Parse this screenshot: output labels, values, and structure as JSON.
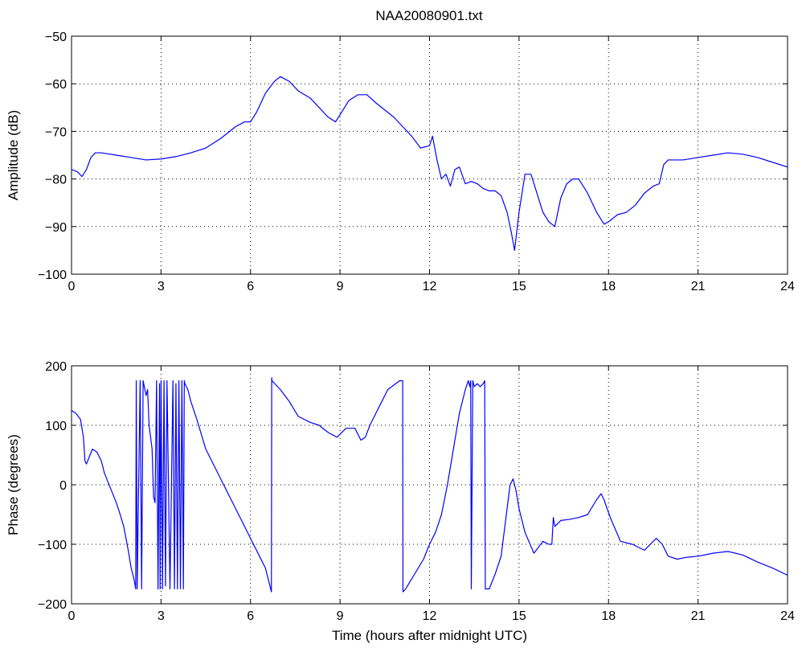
{
  "figure": {
    "title": "NAA20080901.txt"
  },
  "colors": {
    "line": "#0000ff",
    "background": "#ffffff",
    "axes": "#000000",
    "grid": "#000000"
  },
  "chart_data": [
    {
      "type": "line",
      "title": "NAA20080901.txt",
      "xlabel": "",
      "ylabel": "Amplitude (dB)",
      "xlim": [
        0,
        24
      ],
      "ylim": [
        -100,
        -50
      ],
      "xticks": [
        0,
        3,
        6,
        9,
        12,
        15,
        18,
        21,
        24
      ],
      "yticks": [
        -100,
        -90,
        -80,
        -70,
        -60,
        -50
      ],
      "xtick_labels": [
        "0",
        "3",
        "6",
        "9",
        "12",
        "15",
        "18",
        "21",
        "24"
      ],
      "ytick_labels": [
        "−100",
        "−90",
        "−80",
        "−70",
        "−60",
        "−50"
      ],
      "grid": true,
      "series": [
        {
          "x": [
            0.0,
            0.2,
            0.35,
            0.5,
            0.65,
            0.8,
            1.0,
            1.5,
            2.0,
            2.5,
            3.0,
            3.5,
            4.0,
            4.5,
            5.0,
            5.5,
            5.8,
            6.0,
            6.2,
            6.5,
            6.8,
            7.0,
            7.3,
            7.6,
            8.0,
            8.3,
            8.6,
            8.85,
            9.0,
            9.3,
            9.6,
            9.9,
            10.2,
            10.5,
            10.8,
            11.1,
            11.4,
            11.7,
            12.0,
            12.1,
            12.25,
            12.4,
            12.55,
            12.7,
            12.85,
            13.0,
            13.2,
            13.4,
            13.6,
            13.8,
            14.0,
            14.2,
            14.4,
            14.6,
            14.75,
            14.85,
            15.0,
            15.2,
            15.4,
            15.6,
            15.8,
            16.0,
            16.2,
            16.4,
            16.6,
            16.8,
            17.0,
            17.3,
            17.6,
            17.85,
            18.0,
            18.3,
            18.6,
            18.9,
            19.2,
            19.5,
            19.7,
            19.85,
            20.0,
            20.5,
            21.0,
            21.5,
            22.0,
            22.5,
            23.0,
            23.5,
            24.0
          ],
          "y": [
            -78,
            -78.5,
            -79.5,
            -78,
            -75.5,
            -74.5,
            -74.5,
            -75,
            -75.5,
            -76,
            -75.8,
            -75.3,
            -74.5,
            -73.5,
            -71.5,
            -69,
            -68,
            -68,
            -66,
            -62,
            -59.5,
            -58.5,
            -59.5,
            -61.5,
            -63,
            -65,
            -67,
            -68,
            -66.5,
            -63.5,
            -62.3,
            -62.3,
            -64,
            -65.5,
            -67,
            -69,
            -71,
            -73.5,
            -73,
            -71,
            -76,
            -80,
            -79,
            -81.5,
            -78,
            -77.5,
            -81,
            -80.5,
            -81,
            -82,
            -82.5,
            -82.5,
            -83.5,
            -87,
            -91.5,
            -95,
            -87,
            -79,
            -79,
            -83,
            -87,
            -89,
            -90,
            -84,
            -81,
            -80,
            -80,
            -83,
            -87,
            -89.5,
            -89,
            -87.5,
            -87,
            -85.5,
            -83,
            -81.5,
            -81,
            -77,
            -76,
            -76,
            -75.5,
            -75,
            -74.5,
            -74.8,
            -75.5,
            -76.5,
            -77.5
          ]
        }
      ]
    },
    {
      "type": "line",
      "title": "",
      "xlabel": "Time (hours after midnight UTC)",
      "ylabel": "Phase (degrees)",
      "xlim": [
        0,
        24
      ],
      "ylim": [
        -200,
        200
      ],
      "xticks": [
        0,
        3,
        6,
        9,
        12,
        15,
        18,
        21,
        24
      ],
      "yticks": [
        -200,
        -100,
        0,
        100,
        200
      ],
      "xtick_labels": [
        "0",
        "3",
        "6",
        "9",
        "12",
        "15",
        "18",
        "21",
        "24"
      ],
      "ytick_labels": [
        "−200",
        "−100",
        "0",
        "100",
        "200"
      ],
      "grid": true,
      "series": [
        {
          "x": [
            0.0,
            0.15,
            0.3,
            0.4,
            0.45,
            0.5,
            0.7,
            0.85,
            1.0,
            1.1,
            1.3,
            1.5,
            1.6,
            1.75,
            1.9,
            2.0,
            2.1,
            2.15,
            2.17,
            2.2,
            2.3,
            2.35,
            2.4,
            2.5,
            2.55,
            2.6,
            2.7,
            2.75,
            2.8,
            2.85,
            2.9,
            2.95,
            2.97,
            3.0,
            3.05,
            3.1,
            3.15,
            3.2,
            3.3,
            3.4,
            3.45,
            3.5,
            3.55,
            3.6,
            3.65,
            3.7,
            3.75,
            3.78,
            3.8,
            3.85,
            3.9,
            4.0,
            4.2,
            4.5,
            5.0,
            5.5,
            6.0,
            6.3,
            6.5,
            6.6,
            6.7,
            6.71,
            6.72,
            7.0,
            7.3,
            7.6,
            8.0,
            8.3,
            8.6,
            8.9,
            9.2,
            9.5,
            9.7,
            9.85,
            10.0,
            10.3,
            10.6,
            11.0,
            11.1,
            11.11,
            11.2,
            11.5,
            11.8,
            12.0,
            12.2,
            12.4,
            12.6,
            12.8,
            13.0,
            13.2,
            13.3,
            13.35,
            13.38,
            13.4,
            13.45,
            13.5,
            13.6,
            13.7,
            13.8,
            13.85,
            13.87,
            14.0,
            14.2,
            14.4,
            14.5,
            14.6,
            14.7,
            14.8,
            14.9,
            15.0,
            15.2,
            15.5,
            15.8,
            16.0,
            16.1,
            16.15,
            16.2,
            16.4,
            16.7,
            17.0,
            17.3,
            17.6,
            17.75,
            17.85,
            17.95,
            18.1,
            18.4,
            18.8,
            19.2,
            19.6,
            19.8,
            20.0,
            20.3,
            20.6,
            21.0,
            21.5,
            22.0,
            22.5,
            23.0,
            23.5,
            24.0
          ],
          "y": [
            125,
            120,
            110,
            80,
            40,
            35,
            60,
            55,
            40,
            20,
            -5,
            -30,
            -45,
            -70,
            -110,
            -140,
            -160,
            -175,
            175,
            -175,
            175,
            -175,
            175,
            150,
            160,
            100,
            60,
            -20,
            -30,
            175,
            -175,
            170,
            -175,
            175,
            -175,
            175,
            -170,
            175,
            -175,
            175,
            -175,
            170,
            -175,
            175,
            -175,
            175,
            -175,
            175,
            170,
            165,
            160,
            140,
            110,
            60,
            10,
            -40,
            -90,
            -120,
            -140,
            -160,
            -180,
            180,
            175,
            160,
            140,
            115,
            105,
            100,
            88,
            80,
            95,
            95,
            75,
            80,
            100,
            130,
            160,
            175,
            175,
            -180,
            -175,
            -150,
            -125,
            -100,
            -80,
            -50,
            0,
            60,
            120,
            160,
            175,
            165,
            175,
            -175,
            175,
            165,
            170,
            165,
            170,
            175,
            -175,
            -175,
            -150,
            -120,
            -80,
            -40,
            0,
            10,
            -10,
            -40,
            -80,
            -115,
            -95,
            -100,
            -100,
            -55,
            -70,
            -60,
            -58,
            -55,
            -50,
            -25,
            -15,
            -25,
            -40,
            -60,
            -95,
            -100,
            -110,
            -90,
            -100,
            -120,
            -125,
            -122,
            -120,
            -115,
            -112,
            -118,
            -130,
            -140,
            -152
          ]
        }
      ]
    }
  ]
}
